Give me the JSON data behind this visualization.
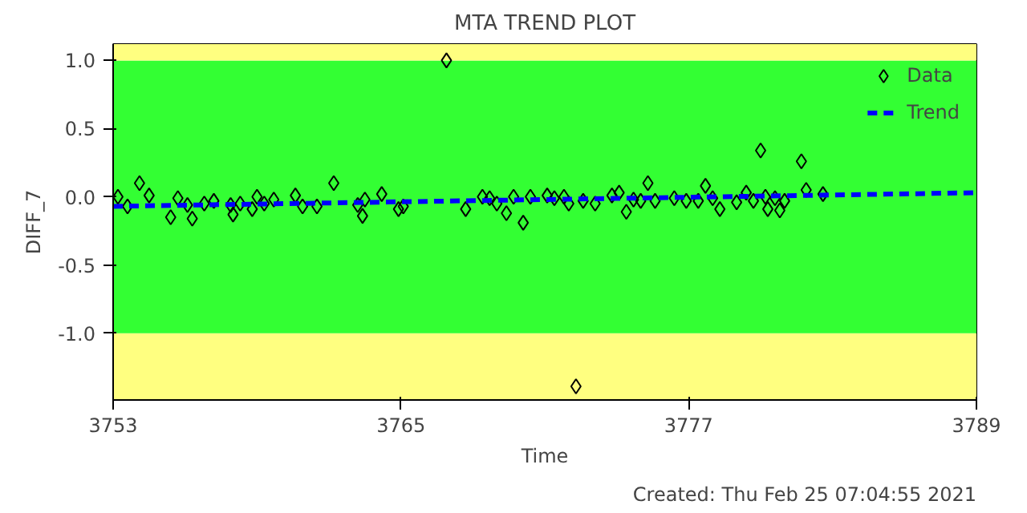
{
  "chart_data": {
    "type": "scatter",
    "title": "MTA TREND PLOT",
    "xlabel": "Time",
    "ylabel": "DIFF_7",
    "annotations": [
      "Created: Thu Feb 25 07:04:55 2021"
    ],
    "xlim": [
      3753,
      3789
    ],
    "xticks": [
      3753,
      3765,
      3777,
      3789
    ],
    "ylim": [
      -1.49,
      1.12
    ],
    "yticks": [
      {
        "value": -1,
        "label": "-1.0"
      },
      {
        "value": -0.5,
        "label": "-0.5"
      },
      {
        "value": 0,
        "label": "0.0"
      },
      {
        "value": 0.5,
        "label": "0.5"
      },
      {
        "value": 1,
        "label": "1.0"
      }
    ],
    "bands": [
      {
        "axis": "y",
        "from": -1.49,
        "to": -1.0,
        "color": "#ffff80"
      },
      {
        "axis": "y",
        "from": -1.0,
        "to": 1.0,
        "color": "#33ff33"
      },
      {
        "axis": "y",
        "from": 1.0,
        "to": 1.12,
        "color": "#ffff80"
      }
    ],
    "grid": false,
    "legend": "top right",
    "series": [
      {
        "name": "Data",
        "marker": "diamond",
        "color": "#000000",
        "x": [
          3753.2,
          3753.6,
          3754.1,
          3754.5,
          3755.4,
          3755.7,
          3756.1,
          3756.3,
          3756.8,
          3757.2,
          3757.9,
          3758.0,
          3758.3,
          3758.8,
          3759.0,
          3759.3,
          3759.7,
          3760.6,
          3760.9,
          3761.5,
          3762.2,
          3763.2,
          3763.4,
          3763.5,
          3764.2,
          3764.9,
          3765.1,
          3766.9,
          3767.7,
          3768.4,
          3768.7,
          3769.0,
          3769.4,
          3769.7,
          3770.1,
          3770.4,
          3771.1,
          3771.4,
          3771.8,
          3772.0,
          3772.3,
          3772.6,
          3773.1,
          3773.8,
          3774.1,
          3774.4,
          3774.7,
          3775.0,
          3775.3,
          3775.6,
          3776.4,
          3776.9,
          3777.4,
          3777.7,
          3778.0,
          3778.3,
          3779.0,
          3779.4,
          3779.7,
          3780.0,
          3780.2,
          3780.3,
          3780.6,
          3780.8,
          3781.0,
          3781.7,
          3781.9,
          3782.6
        ],
        "values": [
          0.0,
          -0.07,
          0.1,
          0.01,
          -0.15,
          -0.01,
          -0.06,
          -0.16,
          -0.05,
          -0.03,
          -0.06,
          -0.13,
          -0.05,
          -0.09,
          0.0,
          -0.05,
          -0.02,
          0.01,
          -0.07,
          -0.07,
          0.1,
          -0.06,
          -0.14,
          -0.02,
          0.02,
          -0.09,
          -0.07,
          1.0,
          -0.09,
          0.0,
          -0.01,
          -0.05,
          -0.12,
          0.0,
          -0.19,
          0.0,
          0.01,
          -0.01,
          0.0,
          -0.05,
          -1.39,
          -0.03,
          -0.05,
          0.01,
          0.03,
          -0.11,
          -0.02,
          -0.03,
          0.1,
          -0.03,
          -0.01,
          -0.03,
          -0.03,
          0.08,
          -0.01,
          -0.09,
          -0.04,
          0.03,
          -0.03,
          0.34,
          0.0,
          -0.09,
          -0.01,
          -0.1,
          -0.03,
          0.26,
          0.05,
          0.02
        ]
      },
      {
        "name": "Trend",
        "type": "line",
        "line_style": "dashed",
        "color": "#0000ff",
        "x": [
          3753,
          3789
        ],
        "values": [
          -0.07,
          0.03
        ]
      }
    ]
  }
}
